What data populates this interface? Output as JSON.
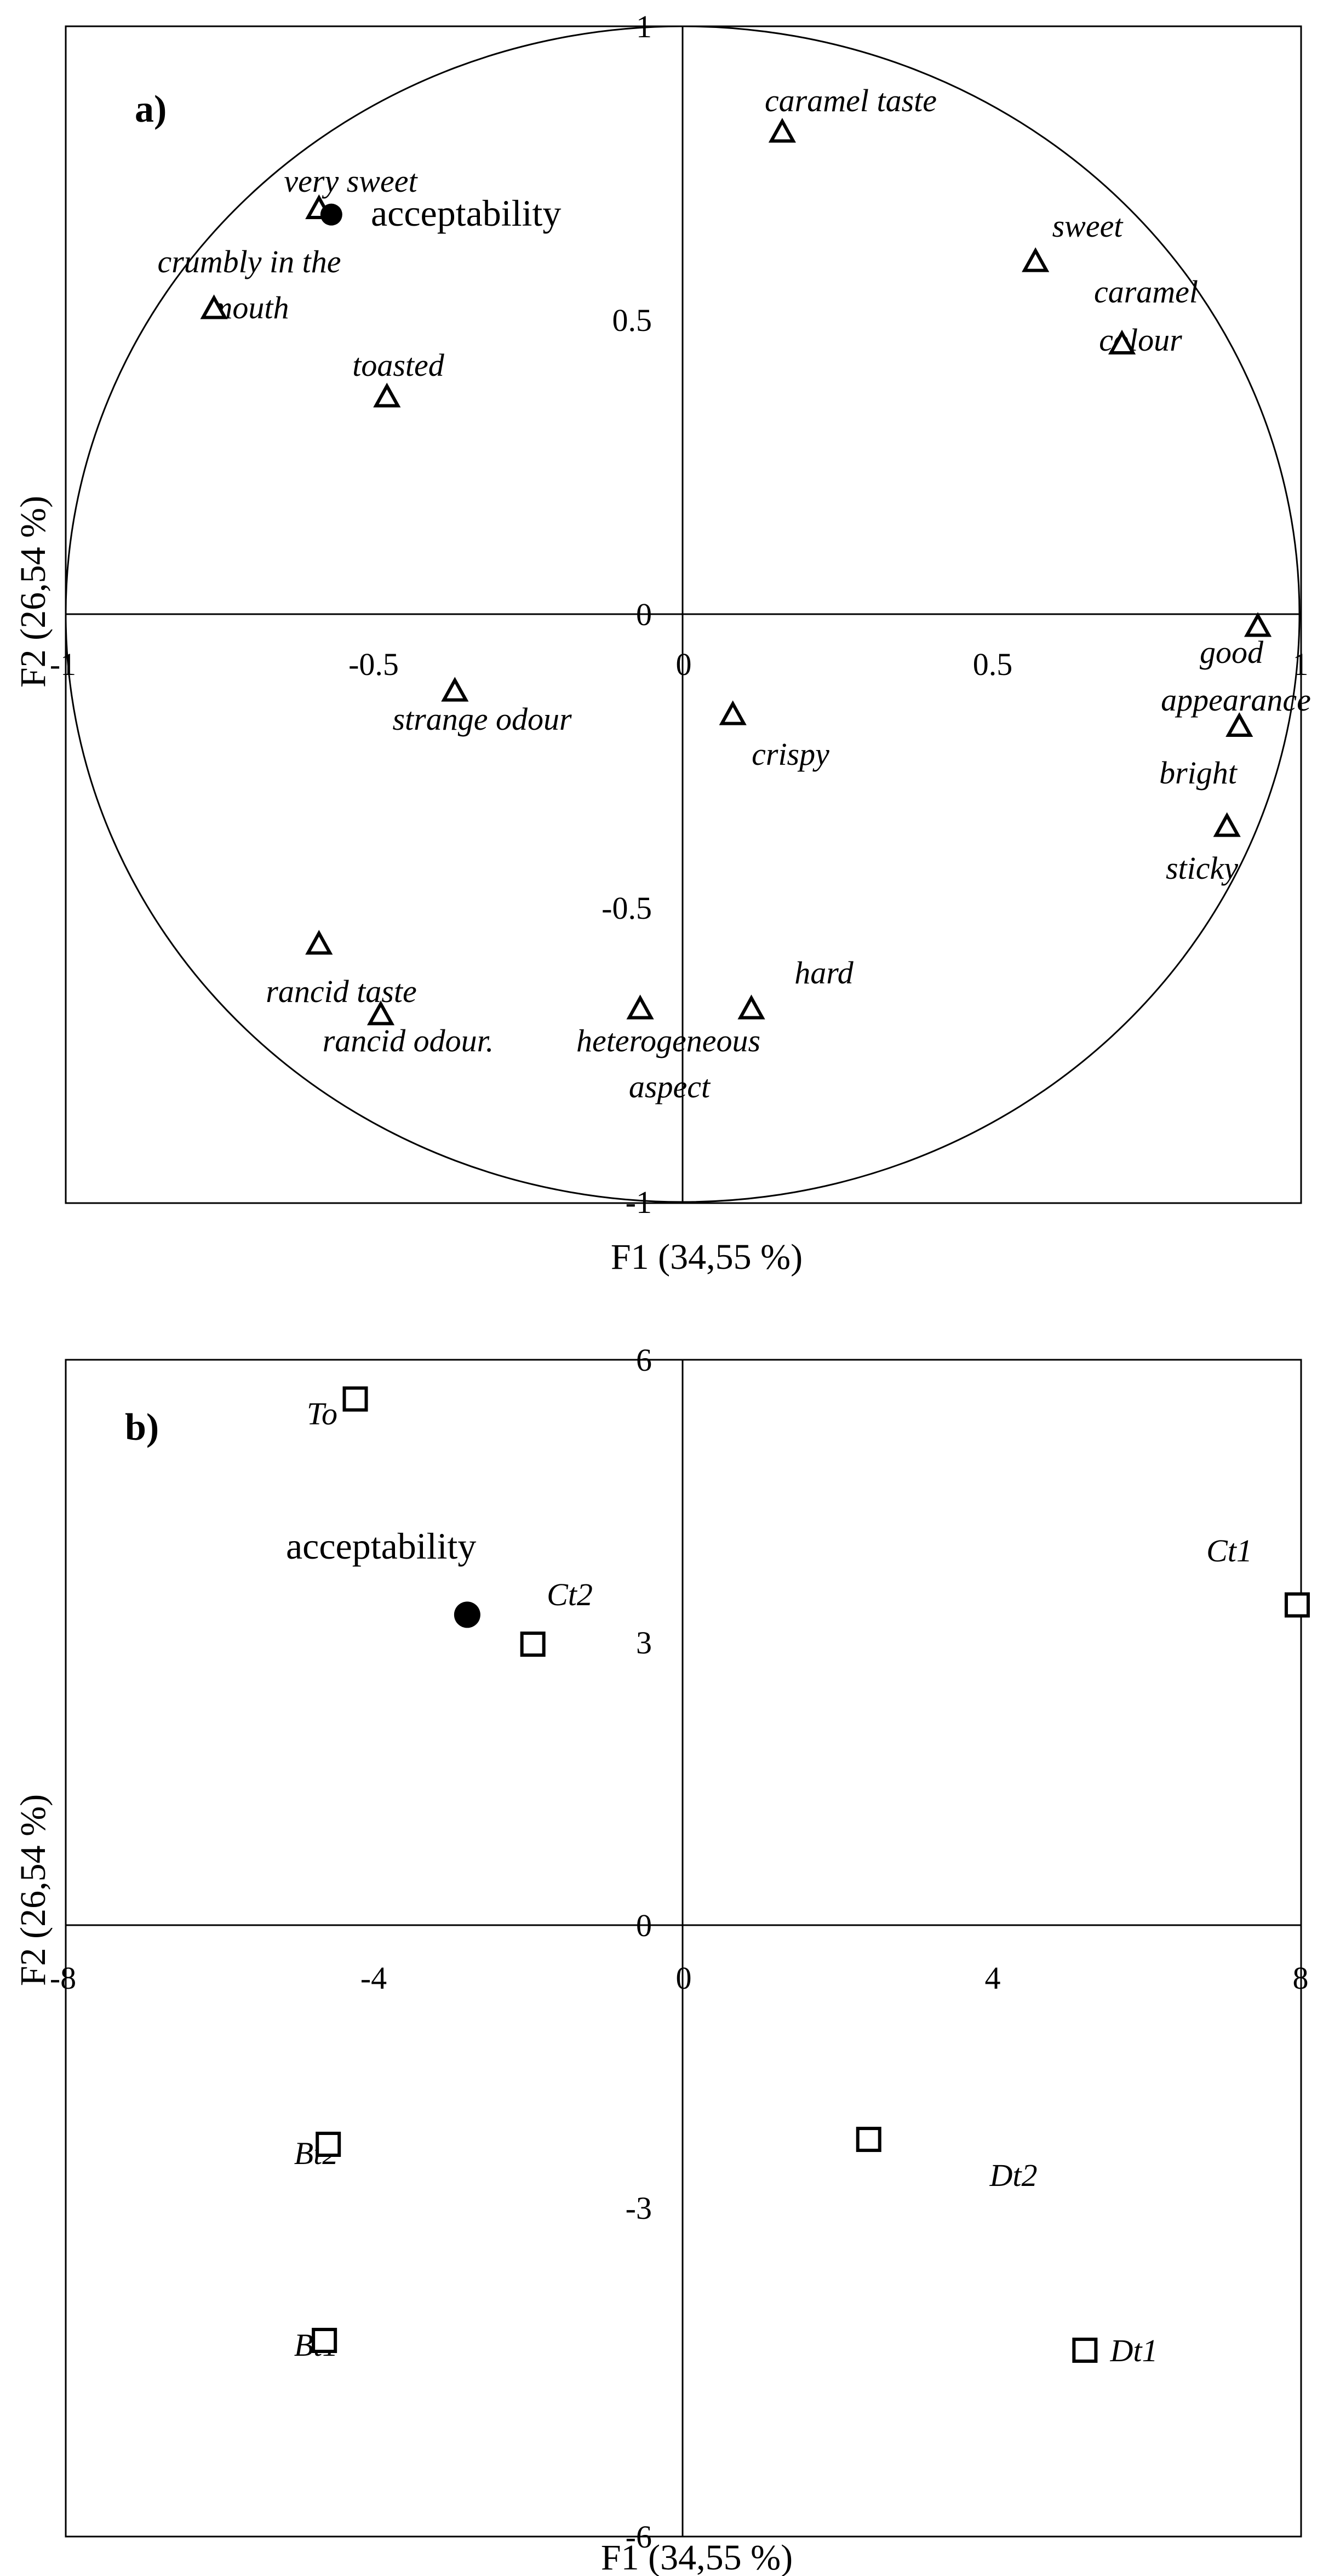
{
  "chart_data": [
    {
      "type": "scatter",
      "panel_label": "a)",
      "xlabel": "F1 (34,55 %)",
      "ylabel": "F2 (26,54 %)",
      "xlim": [
        -1,
        1
      ],
      "ylim": [
        -1,
        1
      ],
      "x_ticks": [
        "-1",
        "-0.5",
        "0",
        "0.5",
        "1"
      ],
      "y_ticks": [
        "1",
        "0.5",
        "0",
        "-0.5",
        "-1"
      ],
      "grid": false,
      "correlation_circle": true,
      "points": [
        {
          "label": "caramel taste",
          "x": 0.16,
          "y": 0.82,
          "marker": "triangle"
        },
        {
          "label": "very sweet",
          "x": -0.59,
          "y": 0.69,
          "marker": "triangle"
        },
        {
          "label": "crumbly in the mouth",
          "x": -0.76,
          "y": 0.52,
          "marker": "triangle"
        },
        {
          "label": "toasted",
          "x": -0.48,
          "y": 0.37,
          "marker": "triangle"
        },
        {
          "label": "sweet",
          "x": 0.57,
          "y": 0.6,
          "marker": "triangle"
        },
        {
          "label": "caramel colour",
          "x": 0.71,
          "y": 0.46,
          "marker": "triangle"
        },
        {
          "label": "good appearance",
          "x": 0.93,
          "y": -0.02,
          "marker": "triangle"
        },
        {
          "label": "strange odour",
          "x": -0.37,
          "y": -0.13,
          "marker": "triangle"
        },
        {
          "label": "crispy",
          "x": 0.08,
          "y": -0.17,
          "marker": "triangle"
        },
        {
          "label": "bright",
          "x": 0.9,
          "y": -0.19,
          "marker": "triangle"
        },
        {
          "label": "sticky",
          "x": 0.88,
          "y": -0.36,
          "marker": "triangle"
        },
        {
          "label": "rancid taste",
          "x": -0.59,
          "y": -0.56,
          "marker": "triangle"
        },
        {
          "label": "rancid odour.",
          "x": -0.49,
          "y": -0.68,
          "marker": "triangle"
        },
        {
          "label": "heterogeneous aspect",
          "x": -0.07,
          "y": -0.67,
          "marker": "triangle"
        },
        {
          "label": "hard",
          "x": 0.11,
          "y": -0.67,
          "marker": "triangle"
        },
        {
          "label": "acceptability",
          "x": -0.57,
          "y": 0.68,
          "marker": "filled-circle"
        }
      ]
    },
    {
      "type": "scatter",
      "panel_label": "b)",
      "xlabel": "F1 (34,55 %)",
      "ylabel": "F2 (26,54 %)",
      "xlim": [
        -8,
        8
      ],
      "ylim": [
        -6,
        6
      ],
      "x_ticks": [
        "-8",
        "-4",
        "0",
        "4",
        "8"
      ],
      "y_ticks": [
        "6",
        "3",
        "0",
        "-3",
        "-6"
      ],
      "grid": false,
      "points": [
        {
          "label": "To",
          "x": -4.25,
          "y": 5.6,
          "marker": "square"
        },
        {
          "label": "Ct2",
          "x": -1.95,
          "y": 3.1,
          "marker": "square"
        },
        {
          "label": "Ct1",
          "x": 7.95,
          "y": 3.5,
          "marker": "square"
        },
        {
          "label": "Bt2",
          "x": -4.6,
          "y": -2.0,
          "marker": "square"
        },
        {
          "label": "Bt1",
          "x": -4.65,
          "y": -4.0,
          "marker": "square"
        },
        {
          "label": "Dt2",
          "x": 2.4,
          "y": -1.95,
          "marker": "square"
        },
        {
          "label": "Dt1",
          "x": 5.2,
          "y": -4.1,
          "marker": "square"
        },
        {
          "label": "acceptability",
          "x": -2.8,
          "y": 3.4,
          "marker": "filled-circle"
        }
      ]
    }
  ]
}
